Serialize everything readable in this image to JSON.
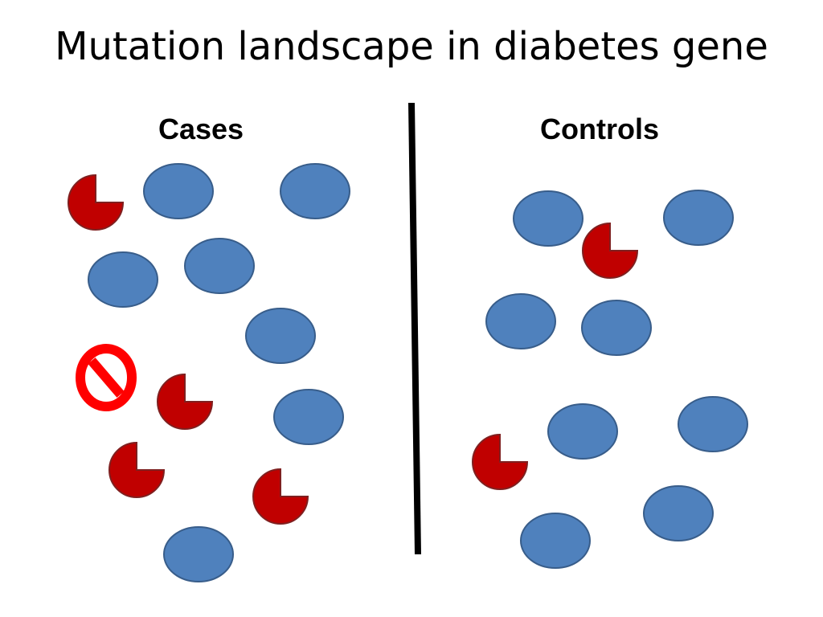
{
  "title": "Mutation landscape in diabetes gene",
  "groups": {
    "cases": {
      "label": "Cases"
    },
    "controls": {
      "label": "Controls"
    }
  },
  "colors": {
    "normal_fill": "#4f81bd",
    "normal_stroke": "#385d8a",
    "mutant_fill": "#c00000",
    "mutant_stroke": "#7f2020",
    "no_symbol": "#ff0000",
    "divider": "#000000"
  },
  "legend_icons": [
    "normal-protein-icon",
    "mutant-protein-icon",
    "no-entry-icon"
  ]
}
